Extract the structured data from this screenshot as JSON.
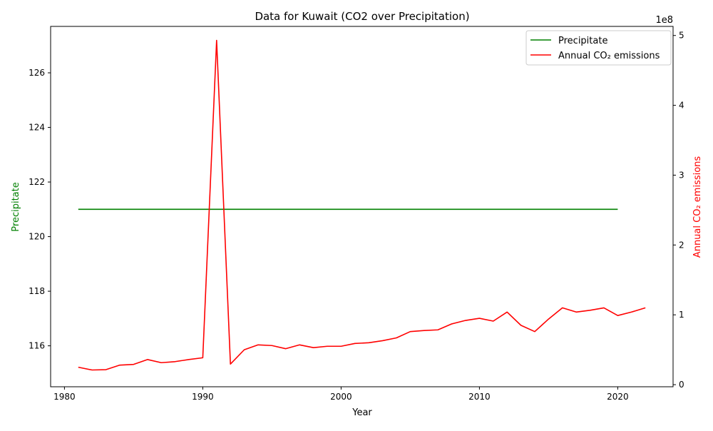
{
  "chart_data": {
    "type": "line",
    "title": "Data for Kuwait (CO2 over Precipitation)",
    "xlabel": "Year",
    "ylabel_left": "Precipitate",
    "ylabel_right": "Annual CO₂ emissions",
    "right_axis_multiplier": "1e8",
    "xlim": [
      1979,
      2024
    ],
    "ylim_left": [
      114.5,
      127.7
    ],
    "ylim_right": [
      -3000000,
      513000000
    ],
    "x_ticks": [
      1980,
      1990,
      2000,
      2010,
      2020
    ],
    "x_tick_labels": [
      "1980",
      "1990",
      "2000",
      "2010",
      "2020"
    ],
    "y_ticks_left": [
      116,
      118,
      120,
      122,
      124,
      126
    ],
    "y_tick_labels_left": [
      "116",
      "118",
      "120",
      "122",
      "124",
      "126"
    ],
    "y_ticks_right": [
      0,
      100000000,
      200000000,
      300000000,
      400000000,
      500000000
    ],
    "y_tick_labels_right": [
      "0",
      "1",
      "2",
      "3",
      "4",
      "5"
    ],
    "legend_position": "top-right",
    "colors": {
      "precipitate": "#008000",
      "co2": "#ff0000"
    },
    "series": [
      {
        "name": "Precipitate",
        "axis": "left",
        "x": [
          1981,
          1982,
          1983,
          1984,
          1985,
          1986,
          1987,
          1988,
          1989,
          1990,
          1991,
          1992,
          1993,
          1994,
          1995,
          1996,
          1997,
          1998,
          1999,
          2000,
          2001,
          2002,
          2003,
          2004,
          2005,
          2006,
          2007,
          2008,
          2009,
          2010,
          2011,
          2012,
          2013,
          2014,
          2015,
          2016,
          2017,
          2018,
          2019,
          2020
        ],
        "values": [
          121,
          121,
          121,
          121,
          121,
          121,
          121,
          121,
          121,
          121,
          121,
          121,
          121,
          121,
          121,
          121,
          121,
          121,
          121,
          121,
          121,
          121,
          121,
          121,
          121,
          121,
          121,
          121,
          121,
          121,
          121,
          121,
          121,
          121,
          121,
          121,
          121,
          121,
          121,
          121
        ]
      },
      {
        "name": "Annual CO₂ emissions",
        "axis": "right",
        "x": [
          1981,
          1982,
          1983,
          1984,
          1985,
          1986,
          1987,
          1988,
          1989,
          1990,
          1991,
          1992,
          1993,
          1994,
          1995,
          1996,
          1997,
          1998,
          1999,
          2000,
          2001,
          2002,
          2003,
          2004,
          2005,
          2006,
          2007,
          2008,
          2009,
          2010,
          2011,
          2012,
          2013,
          2014,
          2015,
          2016,
          2017,
          2018,
          2019,
          2020,
          2021,
          2022
        ],
        "values": [
          25000000,
          21000000,
          21500000,
          28000000,
          29000000,
          36000000,
          31500000,
          33000000,
          36000000,
          38500000,
          493000000,
          29500000,
          50000000,
          57000000,
          56000000,
          51500000,
          57000000,
          53000000,
          55000000,
          55000000,
          59000000,
          60000000,
          63000000,
          67000000,
          76000000,
          77500000,
          78500000,
          87000000,
          92000000,
          95000000,
          91000000,
          104000000,
          85000000,
          76000000,
          94000000,
          110000000,
          104000000,
          106500000,
          110000000,
          99000000,
          104000000,
          110000000
        ]
      }
    ]
  }
}
